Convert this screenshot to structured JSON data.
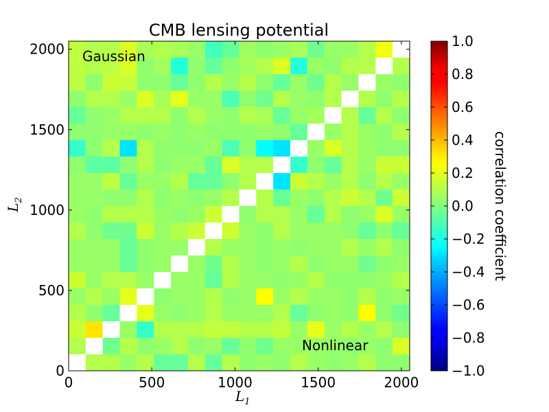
{
  "chart_data": {
    "type": "heatmap",
    "title": "CMB lensing potential",
    "xlabel": {
      "main": "L",
      "sub": "1"
    },
    "ylabel": {
      "main": "L",
      "sub": "2"
    },
    "xlim": [
      0,
      2050
    ],
    "ylim": [
      0,
      2050
    ],
    "bin_width": 102.5,
    "x_ticks": [
      0,
      500,
      1000,
      1500,
      2000
    ],
    "y_ticks": [
      0,
      500,
      1000,
      1500,
      2000
    ],
    "x_tick_labels": [
      "0",
      "500",
      "1000",
      "1500",
      "2000"
    ],
    "y_tick_labels": [
      "0",
      "500",
      "1000",
      "1500",
      "2000"
    ],
    "annotations": {
      "upper_left": "Gaussian",
      "lower_right": "Nonlinear"
    },
    "colorbar": {
      "label": "correlation coefficient",
      "range": [
        -1.0,
        1.0
      ],
      "colormap": "jet",
      "ticks": [
        -1.0,
        -0.8,
        -0.6,
        -0.4,
        -0.2,
        0.0,
        0.2,
        0.4,
        0.6,
        0.8,
        1.0
      ],
      "tick_labels": [
        "−1.0",
        "−0.8",
        "−0.6",
        "−0.4",
        "−0.2",
        "0.0",
        "0.2",
        "0.4",
        "0.6",
        "0.8",
        "1.0"
      ]
    },
    "diagonal": "undefined (white)",
    "z_rows_top_to_bottom": [
      [
        0.13,
        0.1,
        0.1,
        0.18,
        0.08,
        0.1,
        0.08,
        0.05,
        -0.12,
        -0.05,
        0.06,
        0.03,
        0.05,
        0.08,
        -0.03,
        0.05,
        0.05,
        0.1,
        0.22,
        null
      ],
      [
        0.12,
        0.1,
        0.12,
        0.18,
        0.03,
        0.07,
        -0.18,
        0.03,
        -0.05,
        0.03,
        0.07,
        0.1,
        0.18,
        -0.18,
        0.05,
        0.03,
        0.1,
        0.1,
        null,
        0.1
      ],
      [
        0.12,
        0.03,
        0.15,
        0.14,
        0.03,
        0.03,
        -0.05,
        0.03,
        0.1,
        0.05,
        0.1,
        0.03,
        -0.05,
        0.05,
        -0.03,
        0.1,
        0.05,
        null,
        0.05,
        0.03
      ],
      [
        0.03,
        0.1,
        0.1,
        0.05,
        0.18,
        0.08,
        0.2,
        0.05,
        0.05,
        -0.1,
        0.03,
        -0.03,
        0.1,
        0.05,
        0.03,
        0.1,
        null,
        0.1,
        0.03,
        0.1
      ],
      [
        -0.05,
        0.03,
        0.05,
        0.1,
        0.1,
        0.1,
        0.03,
        0.1,
        0.05,
        0.03,
        0.1,
        0.08,
        -0.05,
        0.05,
        0.07,
        null,
        0.1,
        -0.05,
        0.1,
        0.03
      ],
      [
        0.03,
        0.03,
        0.05,
        0.05,
        0.03,
        0.05,
        0.03,
        0.05,
        0.03,
        0.03,
        0.03,
        0.05,
        0.03,
        -0.05,
        null,
        0.05,
        0.1,
        0.05,
        0.03,
        0.1
      ],
      [
        -0.15,
        0.03,
        0.1,
        -0.3,
        0.1,
        0.03,
        0.03,
        0.03,
        0.05,
        -0.1,
        0.03,
        -0.25,
        -0.3,
        null,
        0.05,
        0.18,
        0.1,
        0.05,
        0.03,
        0.03
      ],
      [
        0.03,
        -0.07,
        -0.07,
        0.03,
        0.1,
        0.03,
        0.05,
        0.05,
        -0.05,
        0.18,
        0.1,
        0.1,
        null,
        -0.15,
        0.03,
        -0.05,
        0.1,
        0.05,
        0.15,
        0.15
      ],
      [
        0.05,
        0.05,
        0.12,
        -0.05,
        0.05,
        0.05,
        0.1,
        -0.05,
        -0.05,
        0.03,
        0.1,
        null,
        -0.3,
        0.15,
        0.1,
        0.05,
        0.1,
        0.03,
        0.1,
        0.05
      ],
      [
        0.05,
        0.05,
        0.03,
        0.03,
        0.1,
        0.03,
        0.05,
        0.03,
        0.05,
        0.1,
        null,
        0.1,
        -0.05,
        0.05,
        0.03,
        0.1,
        0.15,
        0.1,
        -0.03,
        0.15
      ],
      [
        0.05,
        0.03,
        0.1,
        0.1,
        0.1,
        0.05,
        0.03,
        0.05,
        0.15,
        null,
        0.03,
        0.1,
        0.1,
        0.05,
        -0.05,
        0.1,
        0.03,
        0.05,
        0.18,
        0.05
      ],
      [
        0.1,
        0.03,
        -0.03,
        -0.03,
        0.15,
        0.05,
        0.1,
        0.15,
        null,
        0.15,
        0.05,
        0.03,
        0.1,
        0.05,
        0.05,
        0.05,
        0.03,
        -0.05,
        0.03,
        -0.05
      ],
      [
        0.05,
        0.05,
        0.05,
        -0.05,
        0.03,
        0.05,
        0.05,
        null,
        0.1,
        0.05,
        0.05,
        0.03,
        0.05,
        0.03,
        0.05,
        0.05,
        0.1,
        0.05,
        0.1,
        0.03
      ],
      [
        0.05,
        0.05,
        0.05,
        -0.05,
        0.03,
        0.05,
        null,
        0.05,
        -0.03,
        0.1,
        0.05,
        0.03,
        0.05,
        0.1,
        0.03,
        0.05,
        0.05,
        -0.03,
        0.03,
        0.05
      ],
      [
        0.15,
        0.05,
        0.1,
        0.1,
        0.05,
        null,
        0.05,
        0.05,
        -0.05,
        0.1,
        0.05,
        0.05,
        0.03,
        0.05,
        0.1,
        0.03,
        0.03,
        0.03,
        0.05,
        0.1
      ],
      [
        0.05,
        0.1,
        0.05,
        0.2,
        null,
        0.03,
        0.05,
        0.05,
        0.1,
        0.03,
        0.05,
        0.25,
        0.05,
        0.1,
        0.05,
        0.05,
        0.03,
        0.1,
        0.03,
        0.05
      ],
      [
        0.1,
        0.03,
        -0.05,
        null,
        0.2,
        0.05,
        0.03,
        0.05,
        0.1,
        0.05,
        0.05,
        0.05,
        0.1,
        -0.05,
        0.03,
        0.05,
        0.03,
        0.25,
        0.03,
        -0.03
      ],
      [
        0.15,
        0.3,
        null,
        0.05,
        -0.15,
        0.1,
        0.1,
        0.1,
        0.13,
        0.13,
        0.1,
        0.1,
        0.13,
        0.05,
        0.2,
        0.05,
        0.1,
        0.05,
        0.1,
        0.03
      ],
      [
        0.1,
        null,
        -0.03,
        0.1,
        0.03,
        0.05,
        0.1,
        0.03,
        0.05,
        -0.05,
        0.03,
        -0.03,
        0.05,
        0.05,
        0.05,
        0.05,
        0.03,
        0.05,
        0.03,
        0.18
      ],
      [
        null,
        0.1,
        0.1,
        0.05,
        0.1,
        -0.05,
        -0.05,
        0.1,
        -0.05,
        0.1,
        0.03,
        0.05,
        0.03,
        0.1,
        0.05,
        0.03,
        0.05,
        0.1,
        0.03,
        0.03
      ]
    ]
  }
}
